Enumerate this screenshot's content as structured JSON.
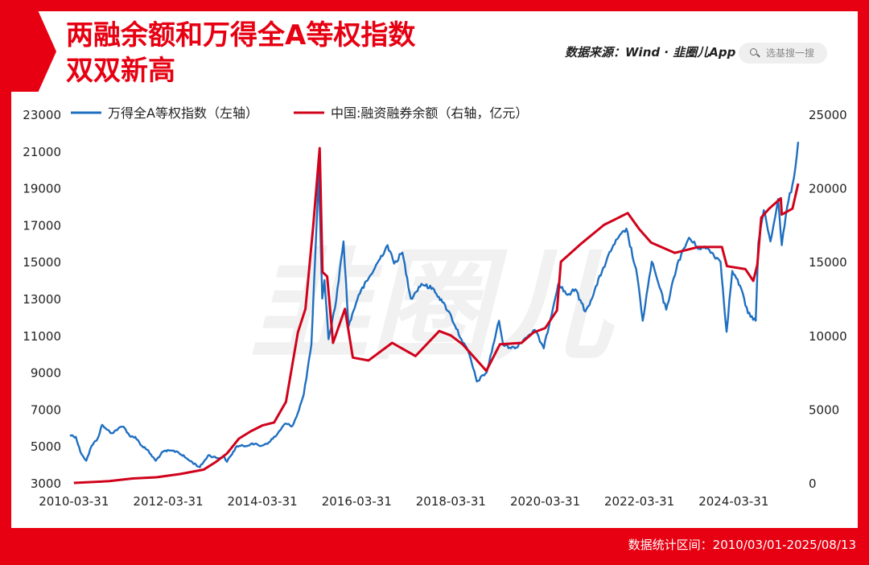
{
  "title_lines": [
    "两融余额和万得全A等权指数",
    "双双新高"
  ],
  "source_text": "数据来源：Wind · 韭圈儿App",
  "search": {
    "icon": "search-icon",
    "placeholder": "选基搜一搜"
  },
  "footer": "数据统计区间：2010/03/01-2025/08/13",
  "watermark": "韭圈儿",
  "colors": {
    "brand": "#e60012",
    "series_index": "#1f6fc0",
    "series_margin": "#d0021b"
  },
  "chart_data": {
    "type": "line",
    "x_ticks": [
      "2010-03-31",
      "2012-03-31",
      "2014-03-31",
      "2016-03-31",
      "2018-03-31",
      "2020-03-31",
      "2022-03-31",
      "2024-03-31"
    ],
    "x_range": [
      "2010-03-01",
      "2025-08-13"
    ],
    "y_left": {
      "ticks": [
        3000,
        5000,
        7000,
        9000,
        11000,
        13000,
        15000,
        17000,
        19000,
        21000,
        23000
      ],
      "range": [
        3000,
        23000
      ]
    },
    "y_right": {
      "ticks": [
        0,
        5000,
        10000,
        15000,
        20000,
        25000
      ],
      "range": [
        0,
        25000
      ]
    },
    "legend_position": "top-left",
    "series": [
      {
        "name": "万得全A等权指数（左轴）",
        "axis": "left",
        "color": "#1f6fc0",
        "points": [
          [
            "2010-03-01",
            5600
          ],
          [
            "2010-04-15",
            5500
          ],
          [
            "2010-05-20",
            4700
          ],
          [
            "2010-07-05",
            4200
          ],
          [
            "2010-08-15",
            5000
          ],
          [
            "2010-10-01",
            5400
          ],
          [
            "2010-11-05",
            6150
          ],
          [
            "2010-12-10",
            5900
          ],
          [
            "2011-01-20",
            5700
          ],
          [
            "2011-03-10",
            5950
          ],
          [
            "2011-04-20",
            6050
          ],
          [
            "2011-06-15",
            5500
          ],
          [
            "2011-07-20",
            5500
          ],
          [
            "2011-09-10",
            5000
          ],
          [
            "2011-10-20",
            4800
          ],
          [
            "2011-12-25",
            4200
          ],
          [
            "2012-02-20",
            4700
          ],
          [
            "2012-04-15",
            4750
          ],
          [
            "2012-06-10",
            4700
          ],
          [
            "2012-09-05",
            4250
          ],
          [
            "2012-12-01",
            3850
          ],
          [
            "2013-02-05",
            4500
          ],
          [
            "2013-04-15",
            4350
          ],
          [
            "2013-06-10",
            4400
          ],
          [
            "2013-06-30",
            4150
          ],
          [
            "2013-09-15",
            5000
          ],
          [
            "2013-11-20",
            5000
          ],
          [
            "2014-01-10",
            5150
          ],
          [
            "2014-03-15",
            5000
          ],
          [
            "2014-05-20",
            5200
          ],
          [
            "2014-07-20",
            5600
          ],
          [
            "2014-09-20",
            6200
          ],
          [
            "2014-11-20",
            6100
          ],
          [
            "2014-12-31",
            6800
          ],
          [
            "2015-02-15",
            7800
          ],
          [
            "2015-04-15",
            10500
          ],
          [
            "2015-06-12",
            19800
          ],
          [
            "2015-07-08",
            13000
          ],
          [
            "2015-07-25",
            14000
          ],
          [
            "2015-08-26",
            10800
          ],
          [
            "2015-10-15",
            12500
          ],
          [
            "2015-12-20",
            16100
          ],
          [
            "2016-01-28",
            11500
          ],
          [
            "2016-04-15",
            13200
          ],
          [
            "2016-07-20",
            14300
          ],
          [
            "2016-11-25",
            15900
          ],
          [
            "2017-01-15",
            14900
          ],
          [
            "2017-03-20",
            15500
          ],
          [
            "2017-05-25",
            13000
          ],
          [
            "2017-08-15",
            13800
          ],
          [
            "2017-11-20",
            13500
          ],
          [
            "2018-01-25",
            12800
          ],
          [
            "2018-03-15",
            12300
          ],
          [
            "2018-06-20",
            10800
          ],
          [
            "2018-08-20",
            10000
          ],
          [
            "2018-10-18",
            8500
          ],
          [
            "2019-01-03",
            9000
          ],
          [
            "2019-04-08",
            11800
          ],
          [
            "2019-05-10",
            10500
          ],
          [
            "2019-08-10",
            10300
          ],
          [
            "2019-10-20",
            10800
          ],
          [
            "2020-01-10",
            11300
          ],
          [
            "2020-03-20",
            10300
          ],
          [
            "2020-07-10",
            13800
          ],
          [
            "2020-09-20",
            13200
          ],
          [
            "2020-11-20",
            13500
          ],
          [
            "2021-02-05",
            12300
          ],
          [
            "2021-03-20",
            12900
          ],
          [
            "2021-06-15",
            14500
          ],
          [
            "2021-09-10",
            15900
          ],
          [
            "2021-12-20",
            16800
          ],
          [
            "2022-03-15",
            14200
          ],
          [
            "2022-04-26",
            11800
          ],
          [
            "2022-07-05",
            15000
          ],
          [
            "2022-10-25",
            12400
          ],
          [
            "2023-01-20",
            14900
          ],
          [
            "2023-04-20",
            16300
          ],
          [
            "2023-06-20",
            15800
          ],
          [
            "2023-09-15",
            15700
          ],
          [
            "2023-12-20",
            15000
          ],
          [
            "2024-02-05",
            11200
          ],
          [
            "2024-03-20",
            14500
          ],
          [
            "2024-05-20",
            13700
          ],
          [
            "2024-07-20",
            12200
          ],
          [
            "2024-09-18",
            11800
          ],
          [
            "2024-10-08",
            16000
          ],
          [
            "2024-11-20",
            17800
          ],
          [
            "2025-01-10",
            16100
          ],
          [
            "2025-03-10",
            18400
          ],
          [
            "2025-04-08",
            15900
          ],
          [
            "2025-05-20",
            18000
          ],
          [
            "2025-07-10",
            19500
          ],
          [
            "2025-08-13",
            21500
          ]
        ]
      },
      {
        "name": "中国:融资融券余额（右轴，亿元）",
        "axis": "right",
        "color": "#d0021b",
        "points": [
          [
            "2010-03-31",
            0
          ],
          [
            "2010-12-31",
            120
          ],
          [
            "2011-06-30",
            300
          ],
          [
            "2011-12-31",
            380
          ],
          [
            "2012-06-30",
            600
          ],
          [
            "2012-12-31",
            900
          ],
          [
            "2013-03-31",
            1400
          ],
          [
            "2013-06-30",
            2000
          ],
          [
            "2013-09-30",
            3000
          ],
          [
            "2013-12-31",
            3500
          ],
          [
            "2014-03-31",
            3900
          ],
          [
            "2014-06-30",
            4100
          ],
          [
            "2014-09-30",
            5500
          ],
          [
            "2014-12-31",
            10200
          ],
          [
            "2015-02-28",
            11800
          ],
          [
            "2015-04-30",
            17500
          ],
          [
            "2015-06-18",
            22700
          ],
          [
            "2015-07-10",
            14300
          ],
          [
            "2015-08-15",
            14000
          ],
          [
            "2015-09-30",
            9500
          ],
          [
            "2015-12-31",
            11800
          ],
          [
            "2016-03-01",
            8500
          ],
          [
            "2016-06-30",
            8300
          ],
          [
            "2016-12-31",
            9500
          ],
          [
            "2017-06-30",
            8600
          ],
          [
            "2017-12-31",
            10300
          ],
          [
            "2018-03-31",
            10000
          ],
          [
            "2018-06-30",
            9400
          ],
          [
            "2018-12-31",
            7600
          ],
          [
            "2019-04-15",
            9400
          ],
          [
            "2019-09-30",
            9500
          ],
          [
            "2019-12-31",
            10200
          ],
          [
            "2020-03-31",
            10500
          ],
          [
            "2020-06-30",
            11700
          ],
          [
            "2020-07-31",
            15000
          ],
          [
            "2020-12-31",
            16200
          ],
          [
            "2021-06-30",
            17500
          ],
          [
            "2021-12-31",
            18300
          ],
          [
            "2022-03-31",
            17200
          ],
          [
            "2022-06-30",
            16300
          ],
          [
            "2022-12-31",
            15600
          ],
          [
            "2023-06-30",
            16000
          ],
          [
            "2023-12-31",
            16000
          ],
          [
            "2024-02-08",
            14700
          ],
          [
            "2024-06-30",
            14500
          ],
          [
            "2024-08-30",
            13700
          ],
          [
            "2024-09-30",
            14800
          ],
          [
            "2024-10-31",
            18000
          ],
          [
            "2024-12-31",
            18600
          ],
          [
            "2025-03-31",
            19300
          ],
          [
            "2025-04-08",
            18200
          ],
          [
            "2025-06-30",
            18600
          ],
          [
            "2025-08-13",
            20300
          ]
        ]
      }
    ]
  }
}
